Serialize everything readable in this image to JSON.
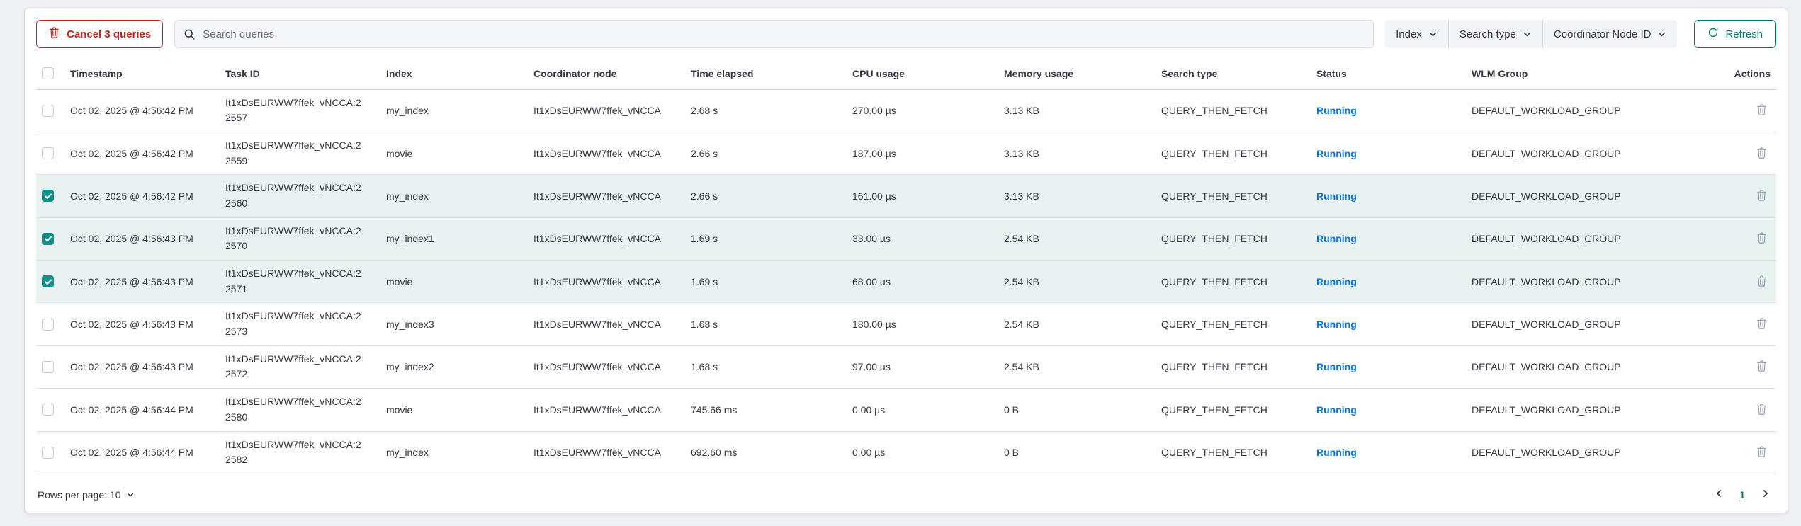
{
  "colors": {
    "danger": "#bd271e",
    "teal": "#00756b",
    "checkbox_teal": "#0e9188",
    "running_blue": "#0774e0",
    "selected_row_bg": "#e8f2f0"
  },
  "toolbar": {
    "cancel_button": "Cancel 3 queries",
    "search_placeholder": "Search queries",
    "filters": [
      {
        "label": "Index"
      },
      {
        "label": "Search type"
      },
      {
        "label": "Coordinator Node ID"
      }
    ],
    "refresh_button": "Refresh"
  },
  "table": {
    "columns": {
      "timestamp": "Timestamp",
      "task_id": "Task ID",
      "index": "Index",
      "coordinator_node": "Coordinator node",
      "time_elapsed": "Time elapsed",
      "cpu_usage": "CPU usage",
      "memory_usage": "Memory usage",
      "search_type": "Search type",
      "status": "Status",
      "wlm_group": "WLM Group",
      "actions": "Actions"
    },
    "rows": [
      {
        "selected": false,
        "timestamp": "Oct 02, 2025 @ 4:56:42 PM",
        "task_id": "It1xDsEURWW7ffek_vNCCA:22557",
        "index": "my_index",
        "coordinator_node": "It1xDsEURWW7ffek_vNCCA",
        "time_elapsed": "2.68 s",
        "cpu_usage": "270.00 µs",
        "memory_usage": "3.13 KB",
        "search_type": "QUERY_THEN_FETCH",
        "status": "Running",
        "wlm_group": "DEFAULT_WORKLOAD_GROUP"
      },
      {
        "selected": false,
        "timestamp": "Oct 02, 2025 @ 4:56:42 PM",
        "task_id": "It1xDsEURWW7ffek_vNCCA:22559",
        "index": "movie",
        "coordinator_node": "It1xDsEURWW7ffek_vNCCA",
        "time_elapsed": "2.66 s",
        "cpu_usage": "187.00 µs",
        "memory_usage": "3.13 KB",
        "search_type": "QUERY_THEN_FETCH",
        "status": "Running",
        "wlm_group": "DEFAULT_WORKLOAD_GROUP"
      },
      {
        "selected": true,
        "timestamp": "Oct 02, 2025 @ 4:56:42 PM",
        "task_id": "It1xDsEURWW7ffek_vNCCA:22560",
        "index": "my_index",
        "coordinator_node": "It1xDsEURWW7ffek_vNCCA",
        "time_elapsed": "2.66 s",
        "cpu_usage": "161.00 µs",
        "memory_usage": "3.13 KB",
        "search_type": "QUERY_THEN_FETCH",
        "status": "Running",
        "wlm_group": "DEFAULT_WORKLOAD_GROUP"
      },
      {
        "selected": true,
        "timestamp": "Oct 02, 2025 @ 4:56:43 PM",
        "task_id": "It1xDsEURWW7ffek_vNCCA:22570",
        "index": "my_index1",
        "coordinator_node": "It1xDsEURWW7ffek_vNCCA",
        "time_elapsed": "1.69 s",
        "cpu_usage": "33.00 µs",
        "memory_usage": "2.54 KB",
        "search_type": "QUERY_THEN_FETCH",
        "status": "Running",
        "wlm_group": "DEFAULT_WORKLOAD_GROUP"
      },
      {
        "selected": true,
        "timestamp": "Oct 02, 2025 @ 4:56:43 PM",
        "task_id": "It1xDsEURWW7ffek_vNCCA:22571",
        "index": "movie",
        "coordinator_node": "It1xDsEURWW7ffek_vNCCA",
        "time_elapsed": "1.69 s",
        "cpu_usage": "68.00 µs",
        "memory_usage": "2.54 KB",
        "search_type": "QUERY_THEN_FETCH",
        "status": "Running",
        "wlm_group": "DEFAULT_WORKLOAD_GROUP"
      },
      {
        "selected": false,
        "timestamp": "Oct 02, 2025 @ 4:56:43 PM",
        "task_id": "It1xDsEURWW7ffek_vNCCA:22573",
        "index": "my_index3",
        "coordinator_node": "It1xDsEURWW7ffek_vNCCA",
        "time_elapsed": "1.68 s",
        "cpu_usage": "180.00 µs",
        "memory_usage": "2.54 KB",
        "search_type": "QUERY_THEN_FETCH",
        "status": "Running",
        "wlm_group": "DEFAULT_WORKLOAD_GROUP"
      },
      {
        "selected": false,
        "timestamp": "Oct 02, 2025 @ 4:56:43 PM",
        "task_id": "It1xDsEURWW7ffek_vNCCA:22572",
        "index": "my_index2",
        "coordinator_node": "It1xDsEURWW7ffek_vNCCA",
        "time_elapsed": "1.68 s",
        "cpu_usage": "97.00 µs",
        "memory_usage": "2.54 KB",
        "search_type": "QUERY_THEN_FETCH",
        "status": "Running",
        "wlm_group": "DEFAULT_WORKLOAD_GROUP"
      },
      {
        "selected": false,
        "timestamp": "Oct 02, 2025 @ 4:56:44 PM",
        "task_id": "It1xDsEURWW7ffek_vNCCA:22580",
        "index": "movie",
        "coordinator_node": "It1xDsEURWW7ffek_vNCCA",
        "time_elapsed": "745.66 ms",
        "cpu_usage": "0.00 µs",
        "memory_usage": "0 B",
        "search_type": "QUERY_THEN_FETCH",
        "status": "Running",
        "wlm_group": "DEFAULT_WORKLOAD_GROUP"
      },
      {
        "selected": false,
        "timestamp": "Oct 02, 2025 @ 4:56:44 PM",
        "task_id": "It1xDsEURWW7ffek_vNCCA:22582",
        "index": "my_index",
        "coordinator_node": "It1xDsEURWW7ffek_vNCCA",
        "time_elapsed": "692.60 ms",
        "cpu_usage": "0.00 µs",
        "memory_usage": "0 B",
        "search_type": "QUERY_THEN_FETCH",
        "status": "Running",
        "wlm_group": "DEFAULT_WORKLOAD_GROUP"
      }
    ]
  },
  "footer": {
    "rows_per_page_label": "Rows per page: 10",
    "page": "1"
  }
}
